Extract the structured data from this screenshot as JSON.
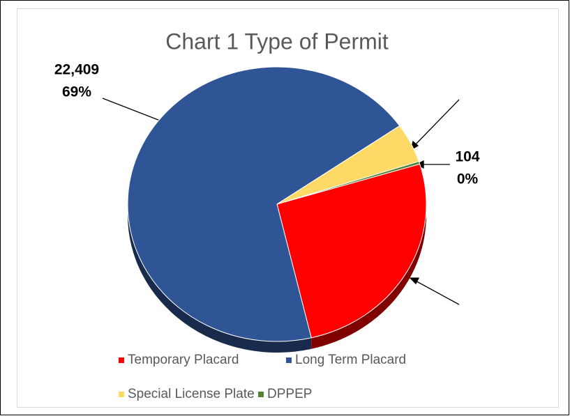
{
  "chart_data": {
    "type": "pie",
    "title": "Chart 1 Type of Permit",
    "categories": [
      "Temporary Placard",
      "Long Term Placard",
      "Special License Plate",
      "DPPEP"
    ],
    "values": [
      8450,
      22409,
      1500,
      104
    ],
    "value_labels": [
      null,
      "22,409",
      null,
      "104"
    ],
    "percent_labels": [
      null,
      "69%",
      null,
      "0%"
    ],
    "colors": [
      "#ff0000",
      "#2f5597",
      "#ffd966",
      "#548235"
    ],
    "legend": "bottom"
  }
}
